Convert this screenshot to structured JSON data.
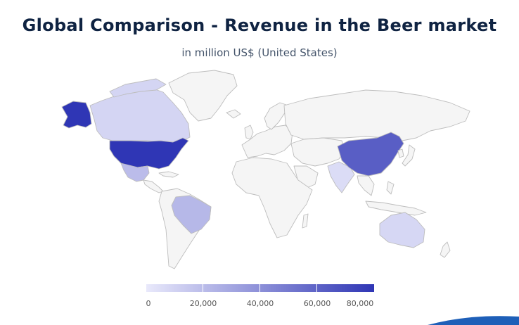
{
  "title": "Global Comparison - Revenue in the Beer market",
  "subtitle": "in million US$ (United States)",
  "legend": {
    "ticks": [
      "0",
      "20,000",
      "40,000",
      "60,000",
      "80,000"
    ],
    "min": 0,
    "max": 80000,
    "color_low": "#e9e9fb",
    "color_high": "#2f36b5"
  },
  "regions": [
    {
      "name": "United States",
      "value": 86000
    },
    {
      "name": "Alaska",
      "value": 86000
    },
    {
      "name": "China",
      "value": 62000
    },
    {
      "name": "Brazil",
      "value": 22000
    },
    {
      "name": "Mexico",
      "value": 20000
    },
    {
      "name": "Canada",
      "value": 9000
    },
    {
      "name": "Australia",
      "value": 8000
    },
    {
      "name": "India",
      "value": 6000
    },
    {
      "name": "Russia",
      "value": 0
    },
    {
      "name": "Africa",
      "value": 0
    },
    {
      "name": "Greenland",
      "value": 0
    }
  ]
}
